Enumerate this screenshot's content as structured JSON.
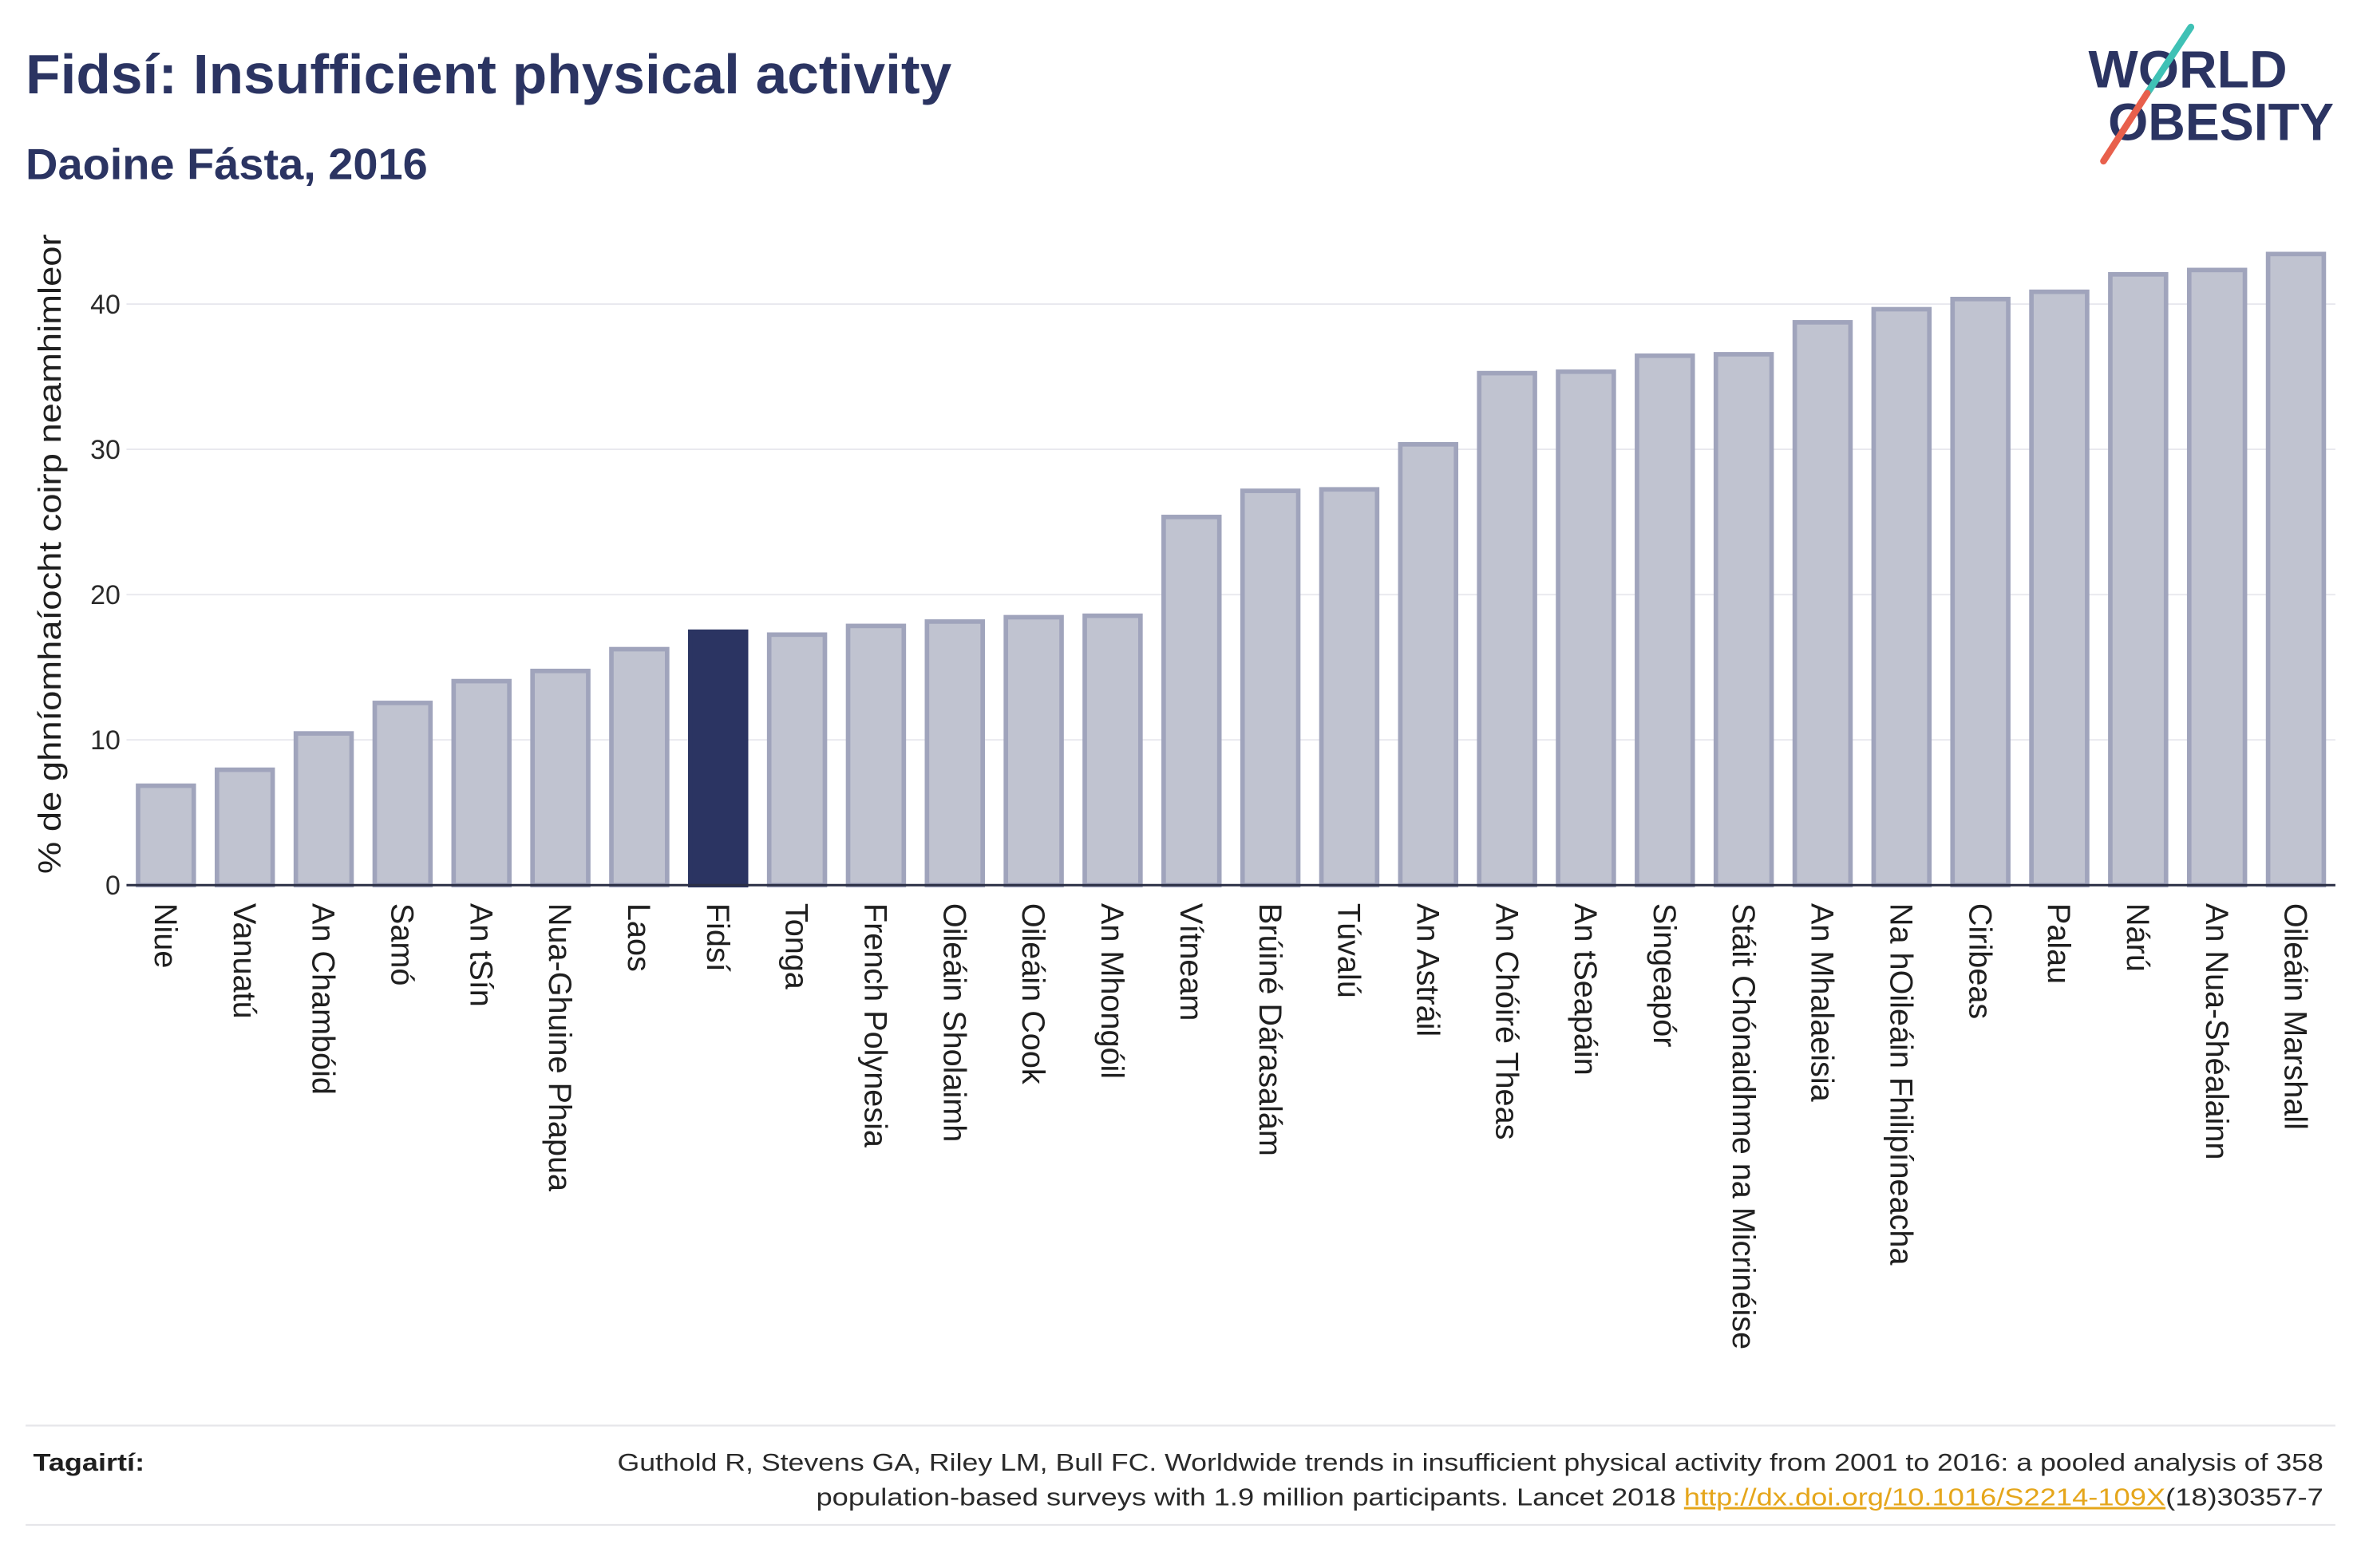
{
  "colors": {
    "accent": "#2b3462",
    "bar": "#c0c3d0",
    "bar_outline": "#a0a4bc",
    "highlight_bar": "#2b3462",
    "grid": "#e8e8ee",
    "axis": "#2b2f45",
    "link": "#e5a61b",
    "logo_teal": "#3fc1b5",
    "logo_coral": "#e8604c"
  },
  "logo": {
    "line1": "WORLD",
    "line2": "OBESITY"
  },
  "chart_data": {
    "type": "bar",
    "title": "Fidsí: Insufficient physical activity",
    "subtitle": "Daoine Fásta, 2016",
    "xlabel": "",
    "ylabel": "% de ghníomhaíocht coirp neamhimleor",
    "categories": [
      "Niue",
      "Vanuatú",
      "An Chambóid",
      "Samó",
      "An tSín",
      "Nua-Ghuine Phapua",
      "Laos",
      "Fidsí",
      "Tonga",
      "French Polynesia",
      "Oileáin Sholaimh",
      "Oileáin Cook",
      "An Mhongóil",
      "Vítneam",
      "Brúiné Dárasalám",
      "Túvalú",
      "An Astráil",
      "An Chóiré Theas",
      "An tSeapáin",
      "Singeapór",
      "Stáit Chónaidhme na Micrinéise",
      "An Mhalaeisia",
      "Na hOileáin Fhilipíneacha",
      "Ciribeas",
      "Palau",
      "Nárú",
      "An Nua-Shéalainn",
      "Oileáin Marshall"
    ],
    "values": [
      7.0,
      8.1,
      10.6,
      12.7,
      14.2,
      14.9,
      16.4,
      17.6,
      17.4,
      18.0,
      18.3,
      18.6,
      18.7,
      25.5,
      27.3,
      27.4,
      30.5,
      35.4,
      35.5,
      36.6,
      36.7,
      38.9,
      39.8,
      40.5,
      41.0,
      42.2,
      42.5,
      43.6
    ],
    "highlight": "Fidsí",
    "ylim": [
      0,
      45.8
    ],
    "yticks": [
      0,
      10,
      20,
      30,
      40
    ],
    "grid": true,
    "legend": "none"
  },
  "footer": {
    "label": "Tagairtí:",
    "reference_line1": "Guthold R, Stevens GA, Riley LM, Bull FC. Worldwide trends in insufficient physical activity from 2001 to 2016: a pooled analysis of 358",
    "reference_line2": "population-based surveys with 1.9 million participants. Lancet 2018 ",
    "reference_link": "http://dx.doi.org/10.1016/S2214-109X",
    "reference_suffix": "(18)30357-7"
  }
}
